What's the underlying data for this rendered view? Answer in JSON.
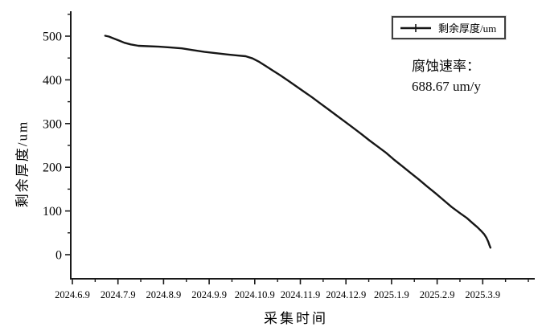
{
  "chart_data": {
    "type": "line",
    "title": "",
    "xlabel": "采集时间",
    "ylabel": "剩余厚度/um",
    "grid": false,
    "legend_position": "top-right",
    "x_unit": "months after 2024.6.9",
    "x_tick_labels": [
      "2024.6.9",
      "2024.7.9",
      "2024.8.9",
      "2024.9.9",
      "2024.10.9",
      "2024.11.9",
      "2024.12.9",
      "2025.1.9",
      "2025.2.9",
      "2025.3.9"
    ],
    "y_ticks": [
      0,
      100,
      200,
      300,
      400,
      500
    ],
    "ylim": [
      0,
      550
    ],
    "xlim_months": [
      0,
      10.15
    ],
    "annotation": {
      "line1": "腐蚀速率：",
      "line2": "688.67 um/y"
    },
    "corrosion_rate": "688.67 um/y",
    "series": [
      {
        "name": "剩余厚度/um",
        "marker": "plus",
        "points": [
          [
            0.72,
            501
          ],
          [
            0.8,
            499
          ],
          [
            0.9,
            495
          ],
          [
            1.02,
            490
          ],
          [
            1.14,
            485
          ],
          [
            1.28,
            481
          ],
          [
            1.45,
            478
          ],
          [
            1.65,
            477
          ],
          [
            1.9,
            476
          ],
          [
            2.15,
            474
          ],
          [
            2.4,
            472
          ],
          [
            2.65,
            468
          ],
          [
            2.9,
            464
          ],
          [
            3.15,
            461
          ],
          [
            3.4,
            458
          ],
          [
            3.6,
            456
          ],
          [
            3.8,
            454
          ],
          [
            3.95,
            449
          ],
          [
            4.1,
            441
          ],
          [
            4.25,
            431
          ],
          [
            4.4,
            421
          ],
          [
            4.55,
            411
          ],
          [
            4.72,
            399
          ],
          [
            4.9,
            386
          ],
          [
            5.08,
            373
          ],
          [
            5.26,
            360
          ],
          [
            5.44,
            346
          ],
          [
            5.62,
            332
          ],
          [
            5.8,
            318
          ],
          [
            5.98,
            304
          ],
          [
            6.16,
            290
          ],
          [
            6.34,
            276
          ],
          [
            6.52,
            261
          ],
          [
            6.7,
            247
          ],
          [
            6.88,
            233
          ],
          [
            7.06,
            217
          ],
          [
            7.24,
            202
          ],
          [
            7.42,
            187
          ],
          [
            7.6,
            172
          ],
          [
            7.78,
            156
          ],
          [
            7.96,
            141
          ],
          [
            8.14,
            125
          ],
          [
            8.32,
            109
          ],
          [
            8.5,
            95
          ],
          [
            8.65,
            84
          ],
          [
            8.78,
            72
          ],
          [
            8.88,
            63
          ],
          [
            8.96,
            55
          ],
          [
            9.03,
            47
          ],
          [
            9.08,
            39
          ],
          [
            9.12,
            30
          ],
          [
            9.15,
            21
          ],
          [
            9.17,
            16
          ]
        ]
      }
    ],
    "colors": {
      "line": "#161616",
      "axis": "#1a1a1a",
      "text": "#000000",
      "legend_border": "#3f3f3f",
      "background": "#ffffff"
    }
  }
}
